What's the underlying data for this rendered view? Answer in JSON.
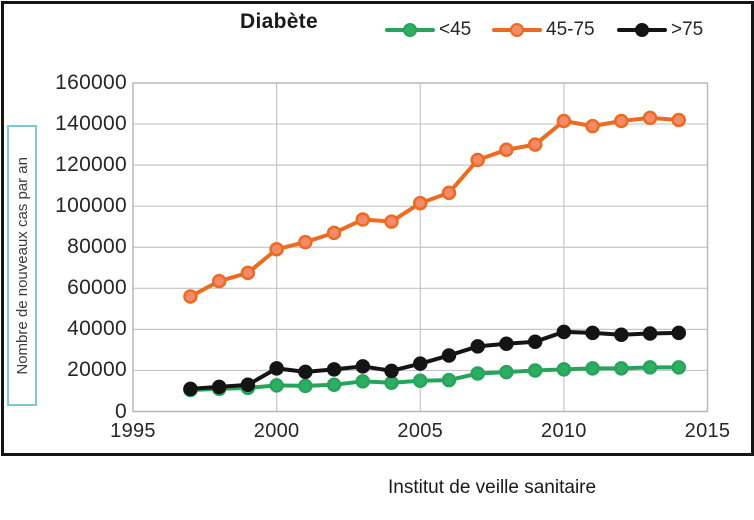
{
  "header": {
    "title": "Diabète"
  },
  "legend": {
    "items": [
      {
        "label": "<45",
        "color": "#27a45c",
        "marker_fill": "#2fae63"
      },
      {
        "label": "45-75",
        "color": "#ed6b21",
        "marker_fill": "#f58a69"
      },
      {
        "label": ">75",
        "color": "#141414",
        "marker_fill": "#141414"
      }
    ]
  },
  "axes": {
    "y_title": "Nombre de nouveaux cas par an",
    "y_ticks": [
      "0",
      "20000",
      "40000",
      "60000",
      "80000",
      "100000",
      "120000",
      "140000",
      "160000"
    ],
    "x_ticks": [
      "1995",
      "2000",
      "2005",
      "2010",
      "2015"
    ]
  },
  "caption": "Institut de veille sanitaire",
  "chart_data": {
    "type": "line",
    "title": "Diabète",
    "x": [
      1997,
      1998,
      1999,
      2000,
      2001,
      2002,
      2003,
      2004,
      2005,
      2006,
      2007,
      2008,
      2009,
      2010,
      2011,
      2012,
      2013,
      2014
    ],
    "series": [
      {
        "name": "45-75",
        "color": "#ed6b21",
        "marker_fill": "#f58a69",
        "values": [
          56000,
          63500,
          67500,
          79000,
          82500,
          87000,
          93500,
          92500,
          101500,
          106500,
          122500,
          127500,
          130000,
          141500,
          139000,
          141500,
          143000,
          142000
        ]
      },
      {
        "name": "<45",
        "color": "#27a45c",
        "marker_fill": "#2fae63",
        "values": [
          10500,
          11000,
          11500,
          12700,
          12500,
          13000,
          14700,
          14000,
          15000,
          15300,
          18500,
          19200,
          20000,
          20500,
          21000,
          21000,
          21500,
          21500
        ]
      },
      {
        "name": ">75",
        "color": "#141414",
        "marker_fill": "#141414",
        "values": [
          11000,
          12000,
          13000,
          21000,
          19300,
          20500,
          22000,
          19800,
          23300,
          27300,
          31700,
          33000,
          34000,
          38800,
          38300,
          37400,
          38000,
          38300
        ]
      }
    ],
    "xlabel": "",
    "ylabel": "Nombre de nouveaux cas par an",
    "xlim": [
      1995,
      2015
    ],
    "ylim": [
      0,
      160000
    ],
    "y_tick_step": 20000,
    "x_tick_values": [
      1995,
      2000,
      2005,
      2010,
      2015
    ],
    "grid": true,
    "legend_position": "top",
    "source": "Institut de veille sanitaire"
  }
}
